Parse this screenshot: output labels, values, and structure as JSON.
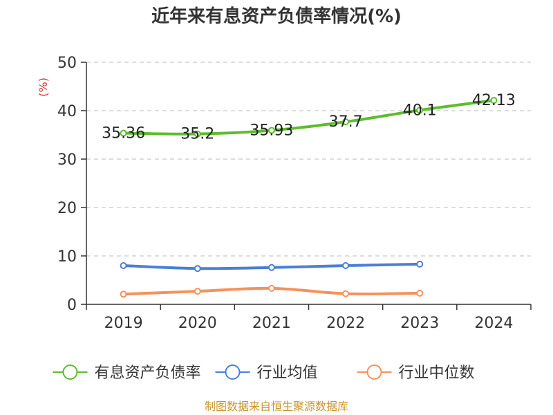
{
  "chart_data": {
    "type": "line",
    "title": "近年来有息资产负债率情况(%)",
    "ylabel": "(%)",
    "categories": [
      "2019",
      "2020",
      "2021",
      "2022",
      "2023",
      "2024"
    ],
    "ylim": [
      0,
      50
    ],
    "yticks": [
      0,
      10,
      20,
      30,
      40,
      50
    ],
    "grid": true,
    "legend_position": "bottom",
    "series": [
      {
        "name": "有息资产负债率",
        "color": "#5cbd2e",
        "values": [
          35.36,
          35.2,
          35.93,
          37.7,
          40.1,
          42.13
        ],
        "labels": [
          "35.36",
          "35.2",
          "35.93",
          "37.7",
          "40.1",
          "42.13"
        ]
      },
      {
        "name": "行业均值",
        "color": "#4a7ed8",
        "values": [
          8.0,
          7.4,
          7.6,
          8.0,
          8.3,
          null
        ]
      },
      {
        "name": "行业中位数",
        "color": "#f5915c",
        "values": [
          2.1,
          2.7,
          3.3,
          2.2,
          2.3,
          null
        ]
      }
    ]
  },
  "source": {
    "text": "制图数据来自恒生聚源数据库",
    "color": "#c8962e"
  },
  "colors": {
    "axis": "#333333",
    "grid": "#bbbbbb",
    "unit_label": "#d0302a"
  }
}
